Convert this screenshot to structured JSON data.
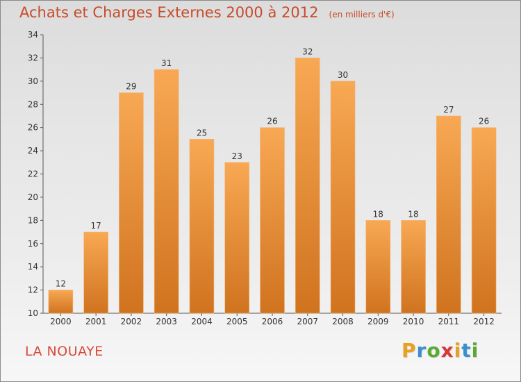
{
  "chart_data": {
    "type": "bar",
    "title": "Achats et Charges Externes 2000 à 2012",
    "subtitle": "(en milliers d'€)",
    "categories": [
      "2000",
      "2001",
      "2002",
      "2003",
      "2004",
      "2005",
      "2006",
      "2007",
      "2008",
      "2009",
      "2010",
      "2011",
      "2012"
    ],
    "values": [
      12,
      17,
      29,
      31,
      25,
      23,
      26,
      32,
      30,
      18,
      18,
      27,
      26
    ],
    "ylim": [
      10,
      34
    ],
    "yticks": [
      10,
      12,
      14,
      16,
      18,
      20,
      22,
      24,
      26,
      28,
      30,
      32,
      34
    ],
    "grid": false,
    "bar_color_top": "#f8a853",
    "bar_color_bottom": "#d0731f"
  },
  "footer": {
    "commune": "LA NOUAYE",
    "brand_letters": [
      "P",
      "r",
      "o",
      "x",
      "i",
      "t",
      "i"
    ],
    "brand_colors": [
      "#e8a020",
      "#3a8fd0",
      "#5aaa32",
      "#d83838",
      "#e8a020",
      "#3a8fd0",
      "#5aaa32"
    ]
  }
}
